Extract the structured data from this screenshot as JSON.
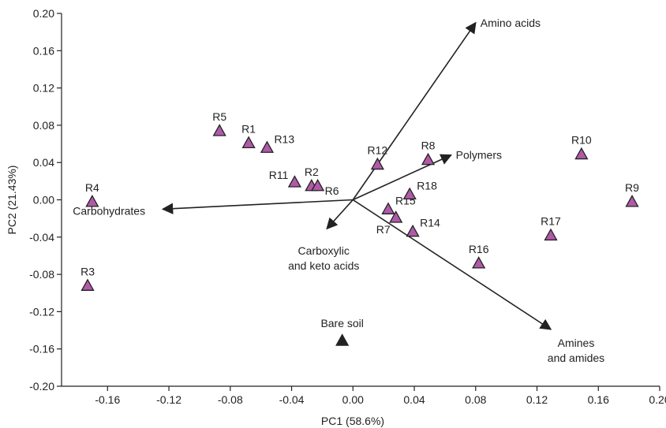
{
  "chart_data": {
    "type": "scatter",
    "xlabel": "PC1 (58.6%)",
    "ylabel": "PC2 (21.43%)",
    "xlim": [
      -0.19,
      0.2
    ],
    "ylim": [
      -0.2,
      0.2
    ],
    "x_ticks": [
      "-0.16",
      "-0.12",
      "-0.08",
      "-0.04",
      "0.00",
      "0.04",
      "0.08",
      "0.12",
      "0.16",
      "0.20"
    ],
    "x_tick_values": [
      -0.16,
      -0.12,
      -0.08,
      -0.04,
      0.0,
      0.04,
      0.08,
      0.12,
      0.16,
      0.2
    ],
    "y_ticks": [
      "0.20",
      "0.16",
      "0.12",
      "0.08",
      "0.04",
      "0.00",
      "-0.04",
      "-0.08",
      "-0.12",
      "-0.16",
      "-0.20"
    ],
    "y_tick_values": [
      0.2,
      0.16,
      0.12,
      0.08,
      0.04,
      0.0,
      -0.04,
      -0.08,
      -0.12,
      -0.16,
      -0.2
    ],
    "grid": false,
    "colors": {
      "samples": "#b05aa8",
      "bare_soil": "#222222",
      "arrows": "#222222"
    },
    "points": [
      {
        "label": "R1",
        "x": -0.068,
        "y": 0.061,
        "label_pos": "above"
      },
      {
        "label": "R2",
        "x": -0.027,
        "y": 0.015,
        "label_pos": "above"
      },
      {
        "label": "R3",
        "x": -0.173,
        "y": -0.092,
        "label_pos": "above"
      },
      {
        "label": "R4",
        "x": -0.17,
        "y": -0.002,
        "label_pos": "above"
      },
      {
        "label": "R5",
        "x": -0.087,
        "y": 0.074,
        "label_pos": "above"
      },
      {
        "label": "R6",
        "x": -0.023,
        "y": 0.015,
        "label_pos": "right-below"
      },
      {
        "label": "R7",
        "x": 0.028,
        "y": -0.019,
        "label_pos": "left-below"
      },
      {
        "label": "R8",
        "x": 0.049,
        "y": 0.043,
        "label_pos": "above"
      },
      {
        "label": "R9",
        "x": 0.182,
        "y": -0.002,
        "label_pos": "above"
      },
      {
        "label": "R10",
        "x": 0.149,
        "y": 0.049,
        "label_pos": "above"
      },
      {
        "label": "R11",
        "x": -0.038,
        "y": 0.019,
        "label_pos": "left"
      },
      {
        "label": "R12",
        "x": 0.016,
        "y": 0.038,
        "label_pos": "above"
      },
      {
        "label": "R13",
        "x": -0.056,
        "y": 0.056,
        "label_pos": "right"
      },
      {
        "label": "R14",
        "x": 0.039,
        "y": -0.034,
        "label_pos": "right"
      },
      {
        "label": "R15",
        "x": 0.023,
        "y": -0.01,
        "label_pos": "right"
      },
      {
        "label": "R16",
        "x": 0.082,
        "y": -0.068,
        "label_pos": "above"
      },
      {
        "label": "R17",
        "x": 0.129,
        "y": -0.038,
        "label_pos": "above"
      },
      {
        "label": "R18",
        "x": 0.037,
        "y": 0.006,
        "label_pos": "right"
      },
      {
        "label": "Bare soil",
        "x": -0.007,
        "y": -0.151,
        "label_pos": "above",
        "bare_soil": true
      }
    ],
    "vectors": [
      {
        "label": "Amino acids",
        "x": 0.08,
        "y": 0.19,
        "label_pos": "right"
      },
      {
        "label": "Polymers",
        "x": 0.064,
        "y": 0.048,
        "label_pos": "right"
      },
      {
        "label": "Carbohydrates",
        "x": -0.124,
        "y": -0.01,
        "label_pos": "left"
      },
      {
        "label": "Carboxylic",
        "label2": "and keto acids",
        "x": -0.017,
        "y": -0.031,
        "label_pos": "below"
      },
      {
        "label": "Amines",
        "label2": "and amides",
        "x": 0.129,
        "y": -0.139,
        "label_pos": "below-right"
      }
    ]
  }
}
